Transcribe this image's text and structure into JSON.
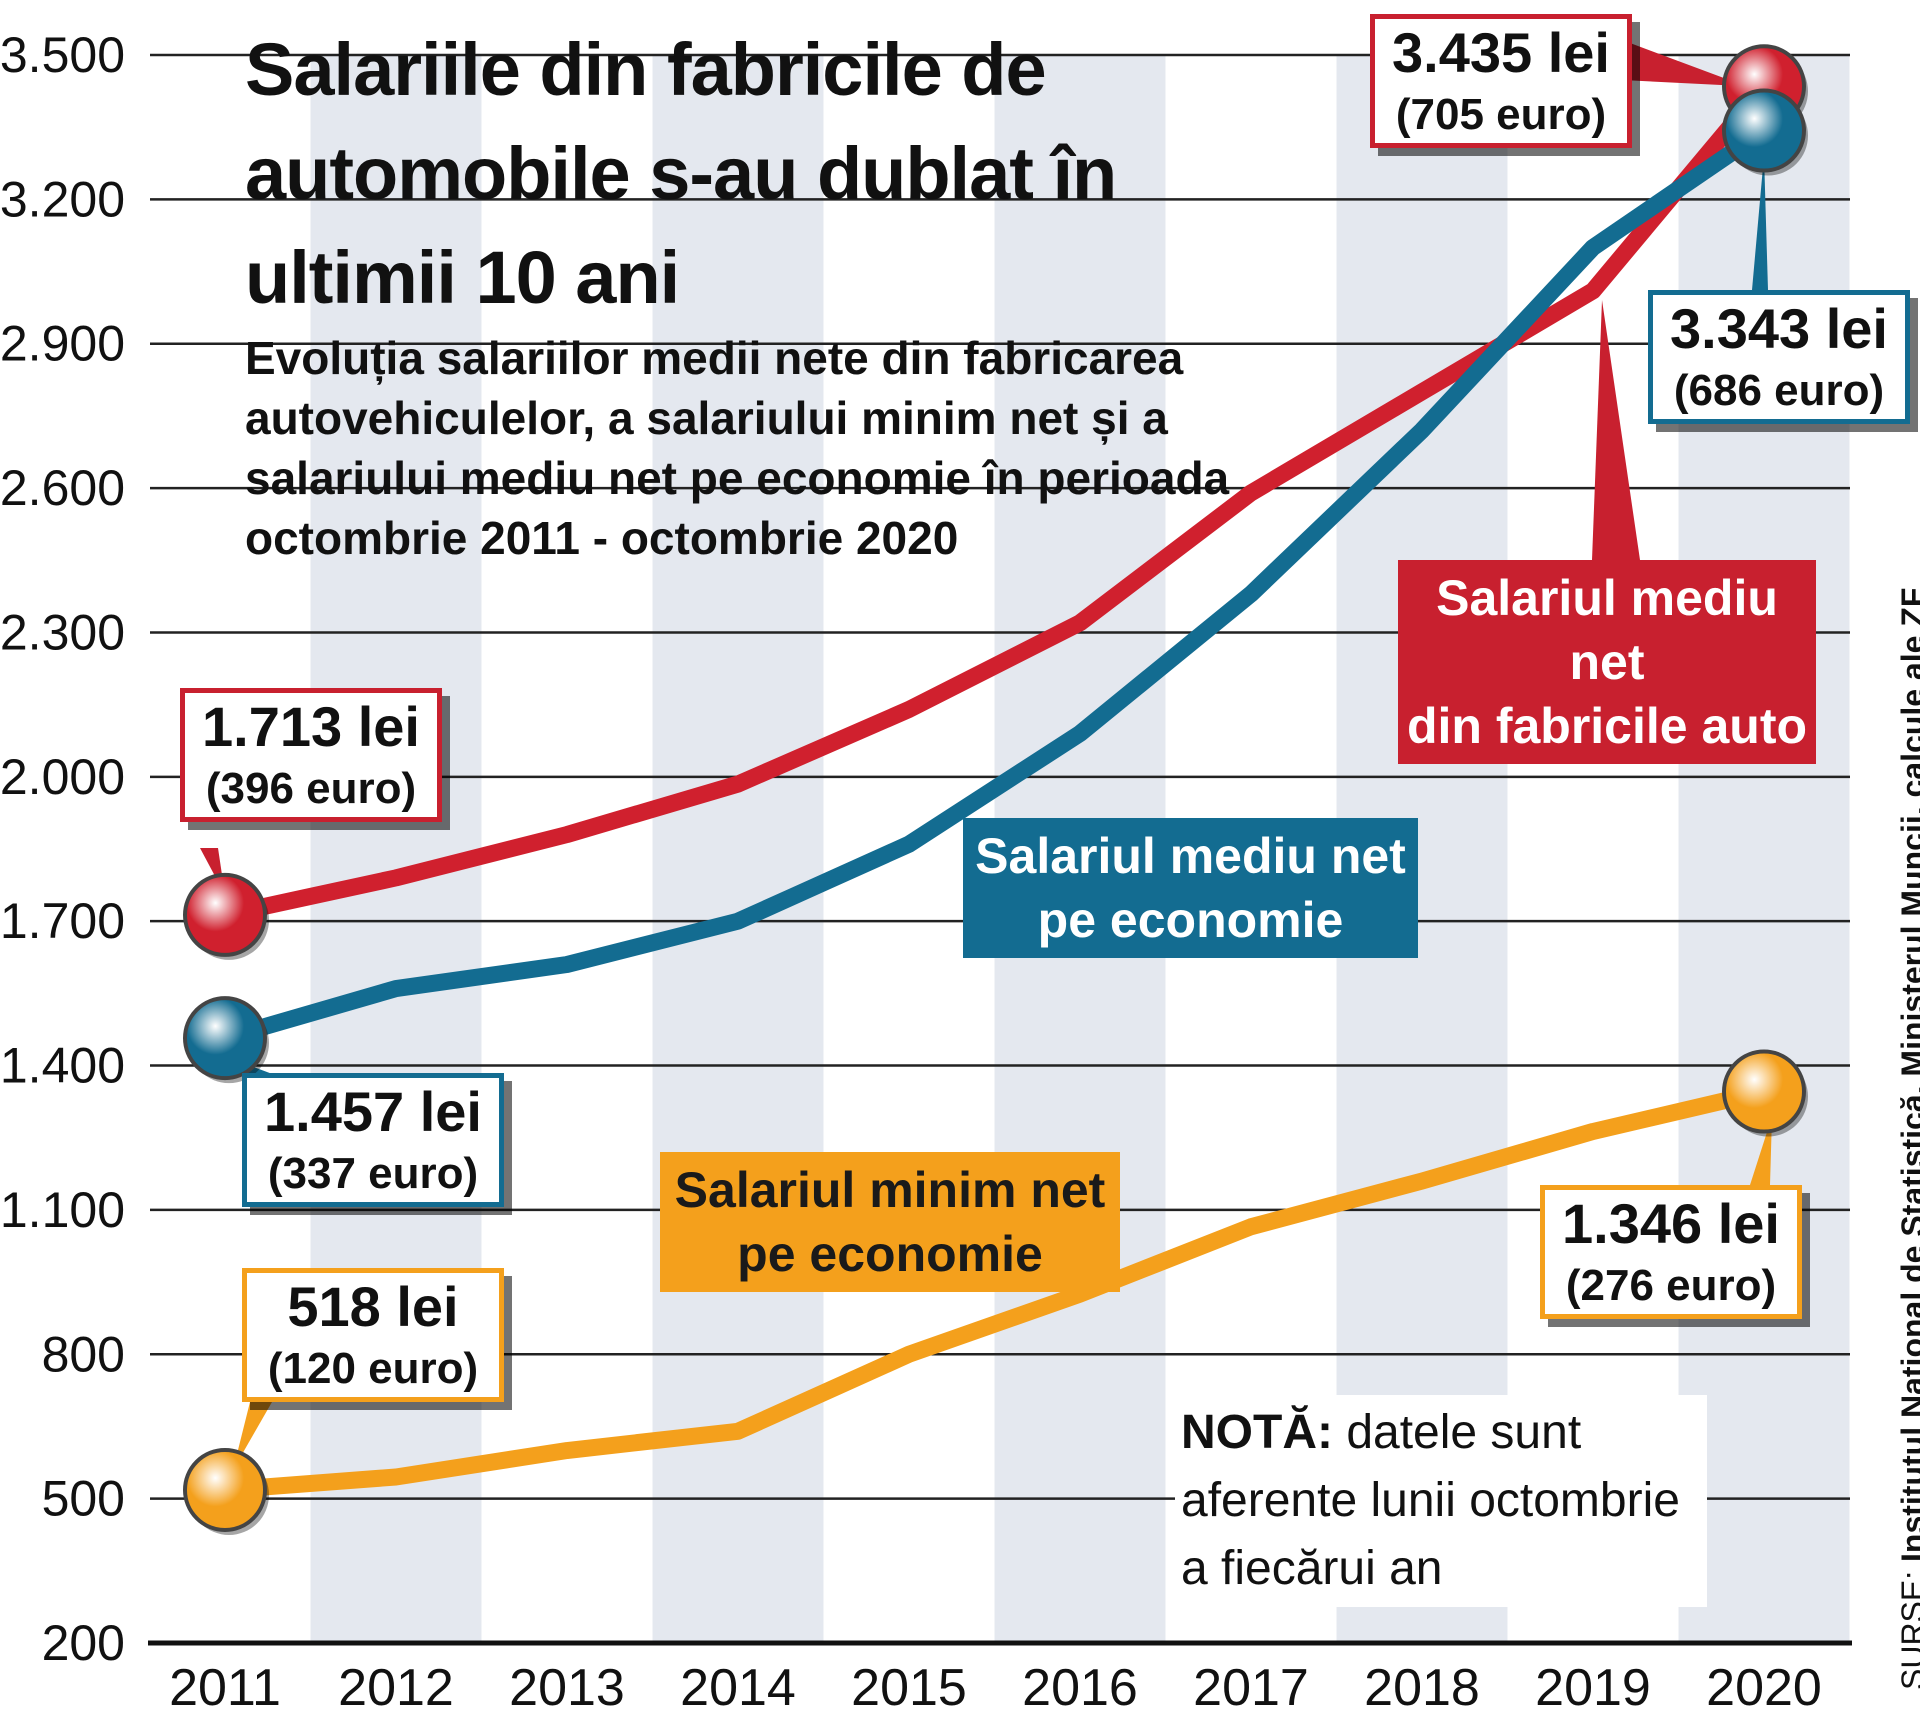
{
  "title": "Salariile din fabricile de automobile s-au dublat în ultimii 10 ani",
  "subtitle": "Evoluția salariilor medii nete din fabricarea autovehiculelor, a salariului minim net și a salariului mediu net pe economie în perioada octombrie 2011 - octombrie 2020",
  "note": {
    "label": "NOTĂ:",
    "text": "datele sunt aferente lunii octombrie a fiecărui an"
  },
  "source": {
    "label": "SURSE:",
    "text": "Institutul Național de Statistică, Ministerul Muncii, calcule ale ZF"
  },
  "colors": {
    "auto": "#d0202e",
    "economy": "#136c91",
    "minimum": "#f4a01c",
    "stripe": "#e4e8ef"
  },
  "chart_data": {
    "type": "line",
    "categories": [
      "2011",
      "2012",
      "2013",
      "2014",
      "2015",
      "2016",
      "2017",
      "2018",
      "2019",
      "2020"
    ],
    "yticks": [
      200,
      500,
      800,
      1100,
      1400,
      1700,
      2000,
      2300,
      2600,
      2900,
      3200,
      3500
    ],
    "ytick_labels": [
      "200",
      "500",
      "800",
      "1.100",
      "1.400",
      "1.700",
      "2.000",
      "2.300",
      "2.600",
      "2.900",
      "3.200",
      "3.500"
    ],
    "ylim": [
      200,
      3500
    ],
    "series": [
      {
        "name": "Salariul mediu net din fabricile auto",
        "key": "auto",
        "values": [
          1713,
          1790,
          1880,
          1985,
          2140,
          2320,
          2590,
          2800,
          3010,
          3435
        ],
        "start_label": {
          "lei": "1.713 lei",
          "euro": "(396 euro)"
        },
        "end_label": {
          "lei": "3.435 lei",
          "euro": "(705 euro)"
        }
      },
      {
        "name": "Salariul mediu net pe economie",
        "key": "economy",
        "values": [
          1457,
          1560,
          1610,
          1700,
          1860,
          2090,
          2380,
          2720,
          3100,
          3343
        ],
        "start_label": {
          "lei": "1.457 lei",
          "euro": "(337 euro)"
        },
        "end_label": {
          "lei": "3.343 lei",
          "euro": "(686 euro)"
        }
      },
      {
        "name": "Salariul minim net pe economie",
        "key": "minimum",
        "values": [
          518,
          545,
          600,
          640,
          800,
          925,
          1065,
          1160,
          1263,
          1346
        ],
        "start_label": {
          "lei": "518 lei",
          "euro": "(120 euro)"
        },
        "end_label": {
          "lei": "1.346 lei",
          "euro": "(276 euro)"
        }
      }
    ],
    "labels": {
      "auto": {
        "line1": "Salariul mediu net",
        "line2": "din fabricile auto"
      },
      "economy": {
        "line1": "Salariul mediu net",
        "line2": "pe economie"
      },
      "minimum": {
        "line1": "Salariul minim net",
        "line2": "pe economie"
      }
    }
  }
}
